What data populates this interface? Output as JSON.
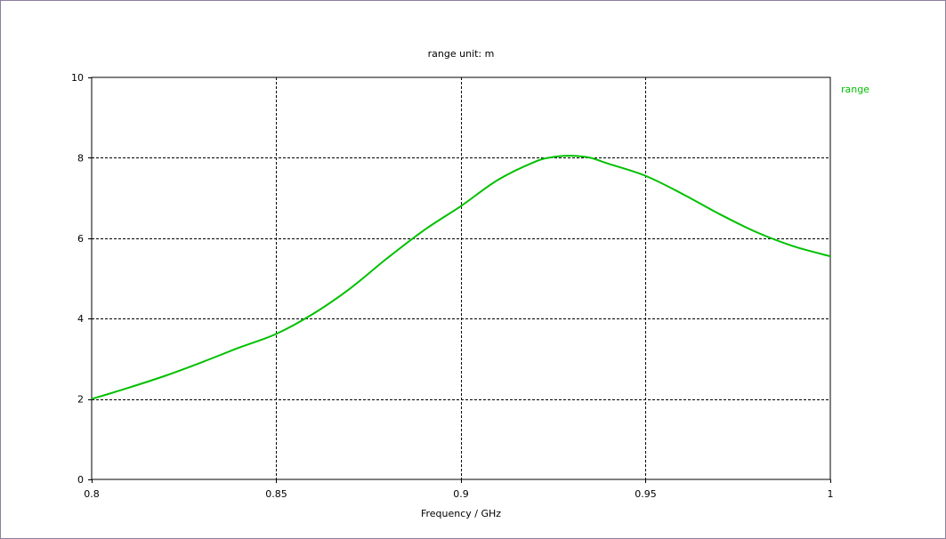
{
  "chart_data": {
    "type": "line",
    "title": "range    unit: m",
    "xlabel": "Frequency / GHz",
    "ylabel": "",
    "xlim": [
      0.8,
      1.0
    ],
    "ylim": [
      0,
      10
    ],
    "x_ticks": [
      0.8,
      0.85,
      0.9,
      0.95,
      1.0
    ],
    "x_tick_labels": [
      "0.8",
      "0.85",
      "0.9",
      "0.95",
      "1"
    ],
    "y_ticks": [
      0,
      2,
      4,
      6,
      8,
      10
    ],
    "y_tick_labels": [
      "0",
      "2",
      "4",
      "6",
      "8",
      "10"
    ],
    "grid": true,
    "grid_style": "dashed",
    "legend": "right",
    "series": [
      {
        "name": "range",
        "color": "#00c000",
        "x": [
          0.8,
          0.81,
          0.82,
          0.83,
          0.84,
          0.85,
          0.86,
          0.87,
          0.88,
          0.89,
          0.9,
          0.91,
          0.92,
          0.925,
          0.93,
          0.935,
          0.94,
          0.95,
          0.96,
          0.97,
          0.98,
          0.99,
          1.0
        ],
        "y": [
          2.0,
          2.28,
          2.58,
          2.92,
          3.28,
          3.62,
          4.12,
          4.75,
          5.5,
          6.2,
          6.8,
          7.45,
          7.9,
          8.02,
          8.05,
          8.0,
          7.85,
          7.55,
          7.1,
          6.6,
          6.15,
          5.8,
          5.55
        ]
      }
    ]
  }
}
